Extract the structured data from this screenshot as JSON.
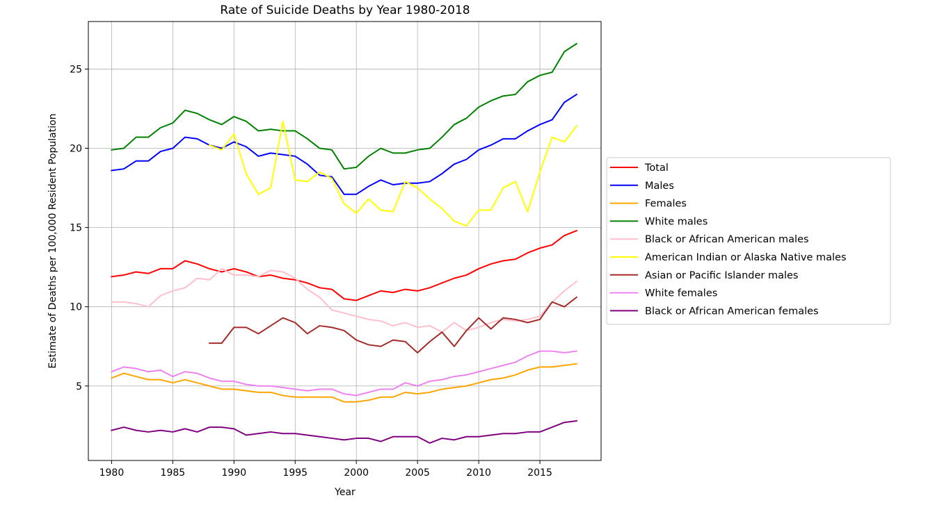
{
  "chart_data": {
    "type": "line",
    "title": "Rate of Suicide Deaths by Year 1980-2018",
    "xlabel": "Year",
    "ylabel": "Estimate of Deaths per 100,000 Resident Population",
    "xlim": [
      1978.1,
      2020.0
    ],
    "ylim": [
      0.3,
      28.0
    ],
    "xticks": [
      1980,
      1985,
      1990,
      1995,
      2000,
      2005,
      2010,
      2015
    ],
    "yticks": [
      5,
      10,
      15,
      20,
      25
    ],
    "grid": true,
    "legend_position": "center-right-outside",
    "series": [
      {
        "name": "Total",
        "color": "#ff0000",
        "x": [
          1980,
          1981,
          1982,
          1983,
          1984,
          1985,
          1986,
          1987,
          1988,
          1989,
          1990,
          1991,
          1992,
          1993,
          1994,
          1995,
          1996,
          1997,
          1998,
          1999,
          2000,
          2001,
          2002,
          2003,
          2004,
          2005,
          2006,
          2007,
          2008,
          2009,
          2010,
          2011,
          2012,
          2013,
          2014,
          2015,
          2016,
          2017,
          2018
        ],
        "y": [
          11.9,
          12.0,
          12.2,
          12.1,
          12.4,
          12.4,
          12.9,
          12.7,
          12.4,
          12.2,
          12.4,
          12.2,
          11.9,
          12.0,
          11.8,
          11.7,
          11.5,
          11.2,
          11.1,
          10.5,
          10.4,
          10.7,
          11.0,
          10.9,
          11.1,
          11.0,
          11.2,
          11.5,
          11.8,
          12.0,
          12.4,
          12.7,
          12.9,
          13.0,
          13.4,
          13.7,
          13.9,
          14.5,
          14.8
        ]
      },
      {
        "name": "Males",
        "color": "#0000ff",
        "x": [
          1980,
          1981,
          1982,
          1983,
          1984,
          1985,
          1986,
          1987,
          1988,
          1989,
          1990,
          1991,
          1992,
          1993,
          1994,
          1995,
          1996,
          1997,
          1998,
          1999,
          2000,
          2001,
          2002,
          2003,
          2004,
          2005,
          2006,
          2007,
          2008,
          2009,
          2010,
          2011,
          2012,
          2013,
          2014,
          2015,
          2016,
          2017,
          2018
        ],
        "y": [
          18.6,
          18.7,
          19.2,
          19.2,
          19.8,
          20.0,
          20.7,
          20.6,
          20.2,
          20.0,
          20.4,
          20.1,
          19.5,
          19.7,
          19.6,
          19.5,
          19.0,
          18.3,
          18.2,
          17.1,
          17.1,
          17.6,
          18.0,
          17.7,
          17.8,
          17.8,
          17.9,
          18.4,
          19.0,
          19.3,
          19.9,
          20.2,
          20.6,
          20.6,
          21.1,
          21.5,
          21.8,
          22.9,
          23.4
        ]
      },
      {
        "name": "Females",
        "color": "#ffa500",
        "x": [
          1980,
          1981,
          1982,
          1983,
          1984,
          1985,
          1986,
          1987,
          1988,
          1989,
          1990,
          1991,
          1992,
          1993,
          1994,
          1995,
          1996,
          1997,
          1998,
          1999,
          2000,
          2001,
          2002,
          2003,
          2004,
          2005,
          2006,
          2007,
          2008,
          2009,
          2010,
          2011,
          2012,
          2013,
          2014,
          2015,
          2016,
          2017,
          2018
        ],
        "y": [
          5.5,
          5.8,
          5.6,
          5.4,
          5.4,
          5.2,
          5.4,
          5.2,
          5.0,
          4.8,
          4.8,
          4.7,
          4.6,
          4.6,
          4.4,
          4.3,
          4.3,
          4.3,
          4.3,
          4.0,
          4.0,
          4.1,
          4.3,
          4.3,
          4.6,
          4.5,
          4.6,
          4.8,
          4.9,
          5.0,
          5.2,
          5.4,
          5.5,
          5.7,
          6.0,
          6.2,
          6.2,
          6.3,
          6.4
        ]
      },
      {
        "name": "White males",
        "color": "#008000",
        "x": [
          1980,
          1981,
          1982,
          1983,
          1984,
          1985,
          1986,
          1987,
          1988,
          1989,
          1990,
          1991,
          1992,
          1993,
          1994,
          1995,
          1996,
          1997,
          1998,
          1999,
          2000,
          2001,
          2002,
          2003,
          2004,
          2005,
          2006,
          2007,
          2008,
          2009,
          2010,
          2011,
          2012,
          2013,
          2014,
          2015,
          2016,
          2017,
          2018
        ],
        "y": [
          19.9,
          20.0,
          20.7,
          20.7,
          21.3,
          21.6,
          22.4,
          22.2,
          21.8,
          21.5,
          22.0,
          21.7,
          21.1,
          21.2,
          21.1,
          21.1,
          20.6,
          20.0,
          19.9,
          18.7,
          18.8,
          19.5,
          20.0,
          19.7,
          19.7,
          19.9,
          20.0,
          20.7,
          21.5,
          21.9,
          22.6,
          23.0,
          23.3,
          23.4,
          24.2,
          24.6,
          24.8,
          26.1,
          26.6
        ]
      },
      {
        "name": "Black or African American males",
        "color": "#ffc0cb",
        "x": [
          1980,
          1981,
          1982,
          1983,
          1984,
          1985,
          1986,
          1987,
          1988,
          1989,
          1990,
          1991,
          1992,
          1993,
          1994,
          1995,
          1996,
          1997,
          1998,
          1999,
          2000,
          2001,
          2002,
          2003,
          2004,
          2005,
          2006,
          2007,
          2008,
          2009,
          2010,
          2011,
          2012,
          2013,
          2014,
          2015,
          2016,
          2017,
          2018
        ],
        "y": [
          10.3,
          10.3,
          10.2,
          10.0,
          10.7,
          11.0,
          11.2,
          11.8,
          11.7,
          12.4,
          12.0,
          12.0,
          11.9,
          12.3,
          12.2,
          11.8,
          11.1,
          10.6,
          9.8,
          9.6,
          9.4,
          9.2,
          9.1,
          8.8,
          9.0,
          8.7,
          8.8,
          8.4,
          9.0,
          8.5,
          8.7,
          9.0,
          9.2,
          9.1,
          9.2,
          9.4,
          10.3,
          11.0,
          11.6
        ]
      },
      {
        "name": "American Indian or Alaska Native males",
        "color": "#ffff00",
        "x": [
          1988,
          1989,
          1990,
          1991,
          1992,
          1993,
          1994,
          1995,
          1996,
          1997,
          1998,
          1999,
          2000,
          2001,
          2002,
          2003,
          2004,
          2005,
          2006,
          2007,
          2008,
          2009,
          2010,
          2011,
          2012,
          2013,
          2014,
          2015,
          2016,
          2017,
          2018
        ],
        "y": [
          20.2,
          19.9,
          20.9,
          18.4,
          17.1,
          17.5,
          21.7,
          18.0,
          17.9,
          18.5,
          18.1,
          16.5,
          15.9,
          16.8,
          16.1,
          16.0,
          17.9,
          17.5,
          16.8,
          16.2,
          15.4,
          15.1,
          16.1,
          16.1,
          17.5,
          17.9,
          16.0,
          18.5,
          20.7,
          20.4,
          21.4
        ]
      },
      {
        "name": "Asian or Pacific Islander males",
        "color": "#a52a2a",
        "x": [
          1988,
          1989,
          1990,
          1991,
          1992,
          1993,
          1994,
          1995,
          1996,
          1997,
          1998,
          1999,
          2000,
          2001,
          2002,
          2003,
          2004,
          2005,
          2006,
          2007,
          2008,
          2009,
          2010,
          2011,
          2012,
          2013,
          2014,
          2015,
          2016,
          2017,
          2018
        ],
        "y": [
          7.7,
          7.7,
          8.7,
          8.7,
          8.3,
          8.8,
          9.3,
          9.0,
          8.3,
          8.8,
          8.7,
          8.5,
          7.9,
          7.6,
          7.5,
          7.9,
          7.8,
          7.1,
          7.8,
          8.4,
          7.5,
          8.5,
          9.3,
          8.6,
          9.3,
          9.2,
          9.0,
          9.2,
          10.3,
          10.0,
          10.6
        ]
      },
      {
        "name": "White females",
        "color": "#ee82ee",
        "x": [
          1980,
          1981,
          1982,
          1983,
          1984,
          1985,
          1986,
          1987,
          1988,
          1989,
          1990,
          1991,
          1992,
          1993,
          1994,
          1995,
          1996,
          1997,
          1998,
          1999,
          2000,
          2001,
          2002,
          2003,
          2004,
          2005,
          2006,
          2007,
          2008,
          2009,
          2010,
          2011,
          2012,
          2013,
          2014,
          2015,
          2016,
          2017,
          2018
        ],
        "y": [
          5.9,
          6.2,
          6.1,
          5.9,
          6.0,
          5.6,
          5.9,
          5.8,
          5.5,
          5.3,
          5.3,
          5.1,
          5.0,
          5.0,
          4.9,
          4.8,
          4.7,
          4.8,
          4.8,
          4.5,
          4.4,
          4.6,
          4.8,
          4.8,
          5.2,
          5.0,
          5.3,
          5.4,
          5.6,
          5.7,
          5.9,
          6.1,
          6.3,
          6.5,
          6.9,
          7.2,
          7.2,
          7.1,
          7.2
        ]
      },
      {
        "name": "Black or African American females",
        "color": "#800080",
        "x": [
          1980,
          1981,
          1982,
          1983,
          1984,
          1985,
          1986,
          1987,
          1988,
          1989,
          1990,
          1991,
          1992,
          1993,
          1994,
          1995,
          1996,
          1997,
          1998,
          1999,
          2000,
          2001,
          2002,
          2003,
          2004,
          2005,
          2006,
          2007,
          2008,
          2009,
          2010,
          2011,
          2012,
          2013,
          2014,
          2015,
          2016,
          2017,
          2018
        ],
        "y": [
          2.2,
          2.4,
          2.2,
          2.1,
          2.2,
          2.1,
          2.3,
          2.1,
          2.4,
          2.4,
          2.3,
          1.9,
          2.0,
          2.1,
          2.0,
          2.0,
          1.9,
          1.8,
          1.7,
          1.6,
          1.7,
          1.7,
          1.5,
          1.8,
          1.8,
          1.8,
          1.4,
          1.7,
          1.6,
          1.8,
          1.8,
          1.9,
          2.0,
          2.0,
          2.1,
          2.1,
          2.4,
          2.7,
          2.8
        ]
      }
    ]
  }
}
